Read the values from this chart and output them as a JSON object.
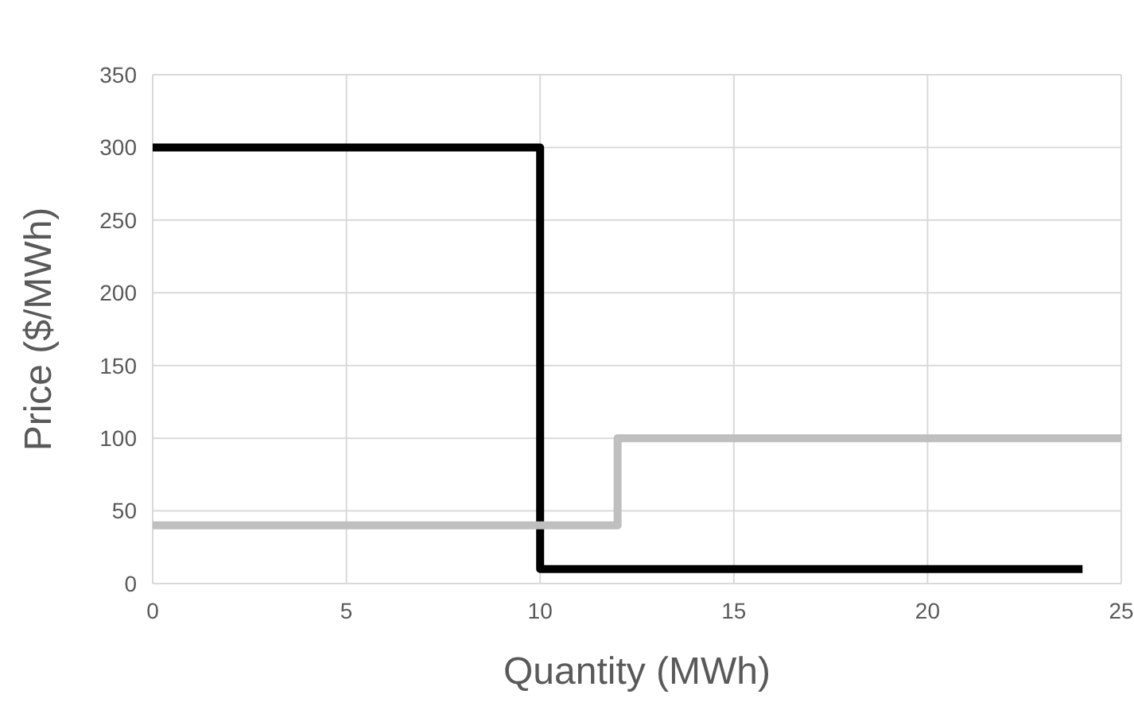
{
  "chart_data": {
    "type": "step",
    "xlabel": "Quantity (MWh)",
    "ylabel": "Price ($/MWh)",
    "series": [
      {
        "color": "#000000",
        "x": [
          0,
          10,
          24
        ],
        "values": [
          300,
          10,
          10
        ]
      },
      {
        "color": "#bfbfbf",
        "x": [
          0,
          12,
          25
        ],
        "values": [
          40,
          100,
          100
        ]
      }
    ],
    "xlim": [
      0,
      25
    ],
    "xticks": [
      0,
      5,
      10,
      15,
      20,
      25
    ],
    "ylim": [
      0,
      350
    ],
    "yticks": [
      0,
      50,
      100,
      150,
      200,
      250,
      300,
      350
    ],
    "grid": true
  }
}
